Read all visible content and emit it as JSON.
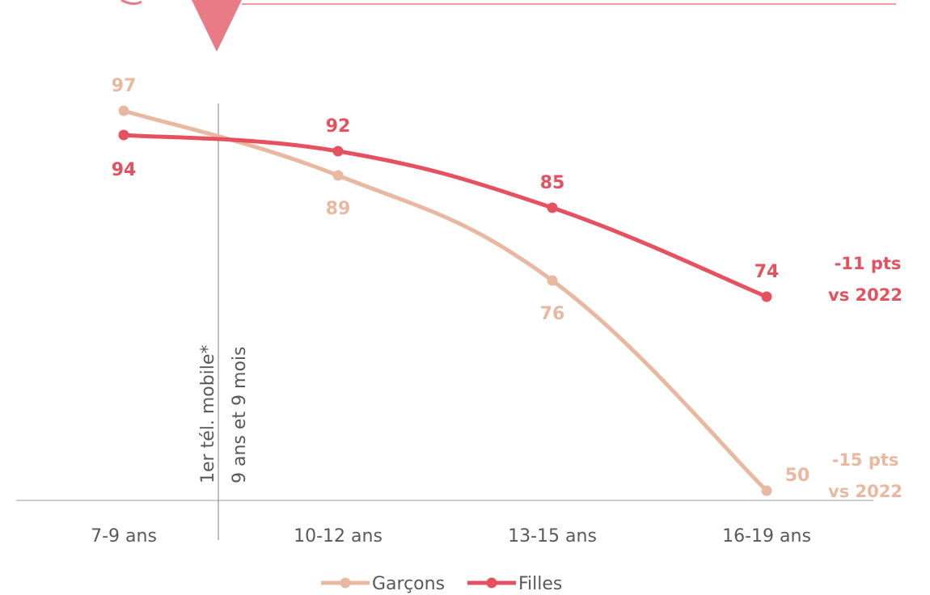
{
  "colors": {
    "garcons": "#e8b9a0",
    "filles": "#e5515f",
    "accent": "#e87b86",
    "axis": "#bfbfbf",
    "marker_line": "#7f7f7f",
    "text": "#595959"
  },
  "chart_data": {
    "type": "line",
    "categories": [
      "7-9 ans",
      "10-12 ans",
      "13-15 ans",
      "16-19 ans"
    ],
    "series": [
      {
        "name": "Garçons",
        "values": [
          97,
          89,
          76,
          50
        ]
      },
      {
        "name": "Filles",
        "values": [
          94,
          92,
          85,
          74
        ]
      }
    ],
    "ylim": [
      50,
      97
    ],
    "annotations": {
      "filles_delta": [
        "-11 pts",
        "vs 2022"
      ],
      "garcons_delta": [
        "-15 pts",
        "vs 2022"
      ],
      "marker": [
        "1er  tél. mobile*",
        "9 ans et 9 mois"
      ]
    },
    "legend": "bottom"
  }
}
